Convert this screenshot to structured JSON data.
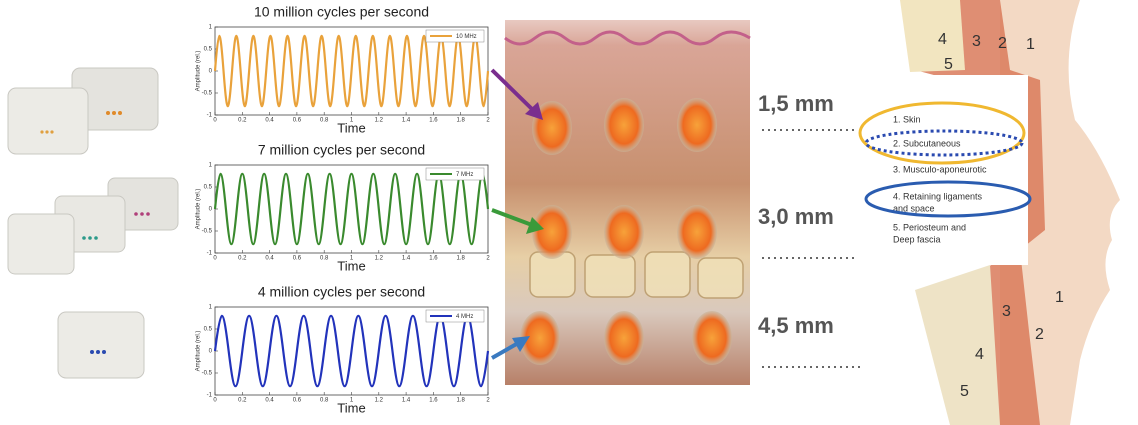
{
  "chart_data": [
    {
      "type": "line",
      "title": "10 million cycles per second",
      "xlabel": "Time",
      "ylabel": "Amplitude (rel.)",
      "xlim": [
        0,
        2
      ],
      "ylim": [
        -1,
        1
      ],
      "xticks": [
        0,
        0.2,
        0.4,
        0.6,
        0.8,
        1,
        1.2,
        1.4,
        1.6,
        1.8,
        2
      ],
      "yticks": [
        -1,
        -0.5,
        0,
        0.5,
        1
      ],
      "x": [
        0,
        0.03125,
        0.0625,
        0.09375,
        0.125,
        0.15625,
        0.1875,
        0.21875,
        0.25,
        0.28125,
        0.3125,
        0.34375,
        0.375,
        0.40625,
        0.4375,
        0.46875,
        0.5,
        0.53125,
        0.5625,
        0.59375,
        0.625,
        0.65625,
        0.6875,
        0.71875,
        0.75,
        0.78125,
        0.8125,
        0.84375,
        0.875,
        0.90625,
        0.9375,
        0.96875,
        1,
        1.03125,
        1.0625,
        1.09375,
        1.125,
        1.15625,
        1.1875,
        1.21875,
        1.25,
        1.28125,
        1.3125,
        1.34375,
        1.375,
        1.40625,
        1.4375,
        1.46875,
        1.5,
        1.53125,
        1.5625,
        1.59375,
        1.625,
        1.65625,
        1.6875,
        1.71875,
        1.75,
        1.78125,
        1.8125,
        1.84375,
        1.875,
        1.90625,
        1.9375,
        1.96875,
        2
      ],
      "series": [
        {
          "name": "10 MHz",
          "color": "#e9a23b",
          "values": [
            0,
            0.8,
            0,
            -0.8,
            0,
            0.8,
            0,
            -0.8,
            0,
            0.8,
            0,
            -0.8,
            0,
            0.8,
            0,
            -0.8,
            0,
            0.8,
            0,
            -0.8,
            0,
            0.8,
            0,
            -0.8,
            0,
            0.8,
            0,
            -0.8,
            0,
            0.8,
            0,
            -0.8,
            0,
            0.8,
            0,
            -0.8,
            0,
            0.8,
            0,
            -0.8,
            0,
            0.8,
            0,
            -0.8,
            0,
            0.8,
            0,
            -0.8,
            0,
            0.8,
            0,
            -0.8,
            0,
            0.8,
            0,
            -0.8,
            0,
            0.8,
            0,
            -0.8,
            0,
            0.8,
            0,
            -0.8,
            0
          ]
        }
      ]
    },
    {
      "type": "line",
      "title": "7 million cycles per second",
      "xlabel": "Time",
      "ylabel": "Amplitude (rel.)",
      "xlim": [
        0,
        2
      ],
      "ylim": [
        -1,
        1
      ],
      "xticks": [
        0,
        0.2,
        0.4,
        0.6,
        0.8,
        1,
        1.2,
        1.4,
        1.6,
        1.8,
        2
      ],
      "yticks": [
        -1,
        -0.5,
        0,
        0.5,
        1
      ],
      "x": [
        0,
        0.04,
        0.08,
        0.12,
        0.16,
        0.2,
        0.24,
        0.28,
        0.32,
        0.36,
        0.4,
        0.44,
        0.48,
        0.52,
        0.56,
        0.6,
        0.64,
        0.68,
        0.72,
        0.76,
        0.8,
        0.84,
        0.88,
        0.92,
        0.96,
        1,
        1.04,
        1.08,
        1.12,
        1.16,
        1.2,
        1.24,
        1.28,
        1.32,
        1.36,
        1.4,
        1.44,
        1.48,
        1.52,
        1.56,
        1.6,
        1.64,
        1.68,
        1.72,
        1.76,
        1.8,
        1.84,
        1.88,
        1.92,
        1.96,
        2
      ],
      "series": [
        {
          "name": "7 MHz",
          "color": "#3a8a2e",
          "values": [
            0,
            0.8,
            0,
            -0.8,
            0,
            0.8,
            0,
            -0.8,
            0,
            0.8,
            0,
            -0.8,
            0,
            0.8,
            0,
            -0.8,
            0,
            0.8,
            0,
            -0.8,
            0,
            0.8,
            0,
            -0.8,
            0,
            0.8,
            0,
            -0.8,
            0,
            0.8,
            0,
            -0.8,
            0,
            0.8,
            0,
            -0.8,
            0,
            0.8,
            0,
            -0.8,
            0,
            0.8,
            0,
            -0.8,
            0,
            0.8,
            0,
            -0.8,
            0,
            0.8,
            0
          ]
        }
      ]
    },
    {
      "type": "line",
      "title": "4 million cycles per second",
      "xlabel": "Time",
      "ylabel": "Amplitude (rel.)",
      "xlim": [
        0,
        2
      ],
      "ylim": [
        -1,
        1
      ],
      "xticks": [
        0,
        0.2,
        0.4,
        0.6,
        0.8,
        1,
        1.2,
        1.4,
        1.6,
        1.8,
        2
      ],
      "yticks": [
        -1,
        -0.5,
        0,
        0.5,
        1
      ],
      "x": [
        0,
        0.05,
        0.1,
        0.15,
        0.2,
        0.25,
        0.3,
        0.35,
        0.4,
        0.45,
        0.5,
        0.55,
        0.6,
        0.65,
        0.7,
        0.75,
        0.8,
        0.85,
        0.9,
        0.95,
        1,
        1.05,
        1.1,
        1.15,
        1.2,
        1.25,
        1.3,
        1.35,
        1.4,
        1.45,
        1.5,
        1.55,
        1.6,
        1.65,
        1.7,
        1.75,
        1.8,
        1.85,
        1.9,
        1.95,
        2
      ],
      "series": [
        {
          "name": "4 MHz",
          "color": "#2233bb",
          "values": [
            0,
            0.8,
            0,
            -0.8,
            0,
            0.8,
            0,
            -0.8,
            0,
            0.8,
            0,
            -0.8,
            0,
            0.8,
            0,
            -0.8,
            0,
            0.8,
            0,
            -0.8,
            0,
            0.8,
            0,
            -0.8,
            0,
            0.8,
            0,
            -0.8,
            0,
            0.8,
            0,
            -0.8,
            0,
            0.8,
            0,
            -0.8,
            0,
            0.8,
            0,
            -0.8,
            0
          ]
        }
      ]
    }
  ],
  "depth_labels": [
    "1,5 mm",
    "3,0 mm",
    "4,5 mm"
  ],
  "layers": [
    "1. Skin",
    "2. Subcutaneous",
    "3. Musculo-aponeurotic",
    "4. Retaining ligaments",
    "and space",
    "5. Periosteum and",
    "Deep fascia"
  ],
  "face_numbers": [
    "4",
    "3",
    "2",
    "1",
    "5",
    "3",
    "1",
    "2",
    "4",
    "5"
  ]
}
